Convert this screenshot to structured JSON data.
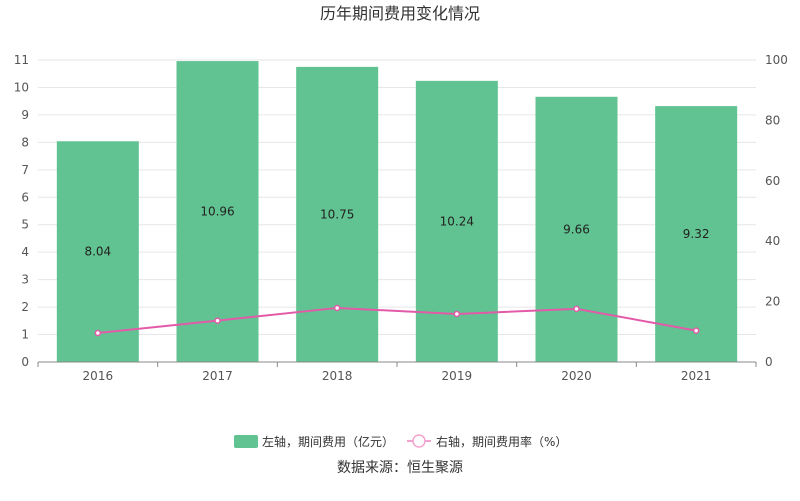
{
  "chart_data": {
    "type": "bar",
    "title": "历年期间费用变化情况",
    "categories": [
      "2016",
      "2017",
      "2018",
      "2019",
      "2020",
      "2021"
    ],
    "series": [
      {
        "name": "左轴，期间费用（亿元）",
        "type": "bar",
        "axis": "left",
        "color": "#61c391",
        "values": [
          8.04,
          10.96,
          10.75,
          10.24,
          9.66,
          9.32
        ],
        "labels": [
          "8.04",
          "10.96",
          "10.75",
          "10.24",
          "9.66",
          "9.32"
        ]
      },
      {
        "name": "右轴，期间费用率（%）",
        "type": "line",
        "axis": "right",
        "color": "#e25aa8",
        "values": [
          9.6,
          13.7,
          17.9,
          15.9,
          17.6,
          10.4
        ]
      }
    ],
    "y_left": {
      "min": 0,
      "max": 11,
      "ticks": [
        "0",
        "1",
        "2",
        "3",
        "4",
        "5",
        "6",
        "7",
        "8",
        "9",
        "10",
        "11"
      ]
    },
    "y_right": {
      "min": 0,
      "max": 100,
      "ticks": [
        "0",
        "20",
        "40",
        "60",
        "80",
        "100"
      ]
    },
    "grid": true,
    "legend": "bottom-center"
  },
  "source": "数据来源：恒生聚源"
}
